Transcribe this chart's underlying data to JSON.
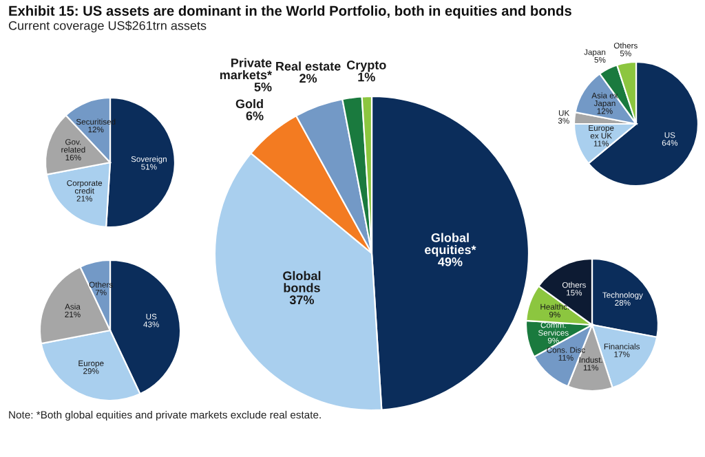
{
  "chart_data": [
    {
      "type": "pie",
      "title": "Exhibit 15: US assets are dominant in the World Portfolio, both in equities and bonds",
      "subtitle": "Current coverage US$261trn assets",
      "annotations": [
        "Note: *Both global equities and private markets exclude real estate."
      ],
      "categories": [
        "Sovereign",
        "Corporate\ncredit",
        "Gov.\nrelated",
        "Securitised"
      ],
      "values": [
        51,
        21,
        16,
        12
      ],
      "value_labels": [
        "51%",
        "21%",
        "16%",
        "12%"
      ],
      "colors": [
        "#0b2d5b",
        "#a9cfee",
        "#a6a6a6",
        "#7399c6"
      ]
    },
    {
      "type": "pie",
      "categories": [
        "US",
        "Europe",
        "Asia",
        "Others"
      ],
      "values": [
        43,
        29,
        21,
        7
      ],
      "value_labels": [
        "43%",
        "29%",
        "21%",
        "7%"
      ],
      "colors": [
        "#0b2d5b",
        "#a9cfee",
        "#a6a6a6",
        "#7399c6"
      ]
    },
    {
      "type": "pie",
      "categories": [
        "Global\nequities*",
        "Global\nbonds",
        "Gold",
        "Private\nmarkets*",
        "Real estate",
        "Crypto"
      ],
      "values": [
        49,
        37,
        6,
        5,
        2,
        1
      ],
      "value_labels": [
        "49%",
        "37%",
        "6%",
        "5%",
        "2%",
        "1%"
      ],
      "colors": [
        "#0b2d5b",
        "#a9cfee",
        "#f37b21",
        "#7399c6",
        "#1a7a3e",
        "#8cc63f"
      ]
    },
    {
      "type": "pie",
      "categories": [
        "US",
        "Europe\nex UK",
        "UK",
        "Asia ex\nJapan",
        "Japan",
        "Others"
      ],
      "values": [
        64,
        11,
        3,
        12,
        5,
        5
      ],
      "value_labels": [
        "64%",
        "11%",
        "3%",
        "12%",
        "5%",
        "5%"
      ],
      "colors": [
        "#0b2d5b",
        "#a9cfee",
        "#a6a6a6",
        "#7399c6",
        "#1a7a3e",
        "#8cc63f"
      ]
    },
    {
      "type": "pie",
      "categories": [
        "Technology",
        "Financials",
        "Indust.",
        "Cons. Disc",
        "Comm.\nServices",
        "Healthc.",
        "Others"
      ],
      "values": [
        28,
        17,
        11,
        11,
        9,
        9,
        15
      ],
      "value_labels": [
        "28%",
        "17%",
        "11%",
        "11%",
        "9%",
        "9%",
        "15%"
      ],
      "colors": [
        "#0b2d5b",
        "#a9cfee",
        "#a6a6a6",
        "#7399c6",
        "#1a7a3e",
        "#8cc63f",
        "#0d1b33"
      ]
    }
  ]
}
